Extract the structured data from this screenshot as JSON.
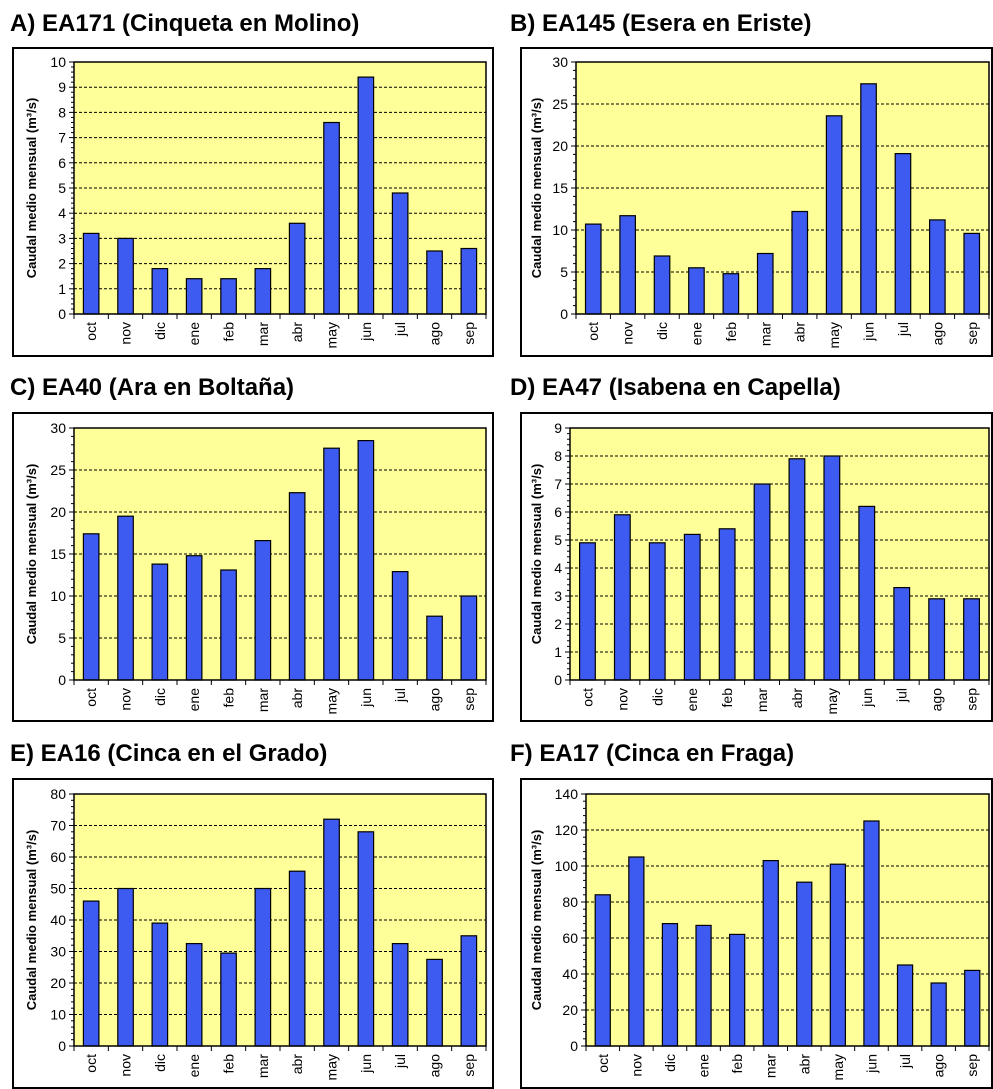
{
  "figure": {
    "panel_titles": [
      "A) EA171 (Cinqueta en Molino)",
      "B) EA145 (Esera en Eriste)",
      "C) EA40 (Ara en Boltaña)",
      "D) EA47 (Isabena en Capella)",
      "E) EA16 (Cinca en el Grado)",
      "F) EA17 (Cinca en Fraga)"
    ]
  },
  "colors": {
    "bar": "#3d5bf0",
    "plot_bg": "#ffff99",
    "gridline": "#000000",
    "border": "#000000"
  },
  "chart_data": [
    {
      "type": "bar",
      "title": "A) EA171 (Cinqueta en Molino)",
      "ylabel": "Caudal medio mensual (m³/s)",
      "categories": [
        "oct",
        "nov",
        "dic",
        "ene",
        "feb",
        "mar",
        "abr",
        "may",
        "jun",
        "jul",
        "ago",
        "sep"
      ],
      "values": [
        3.2,
        3.0,
        1.8,
        1.4,
        1.4,
        1.8,
        3.6,
        7.6,
        9.4,
        4.8,
        2.5,
        2.6
      ],
      "ylim": [
        0,
        10
      ],
      "yticks": [
        0,
        1,
        2,
        3,
        4,
        5,
        6,
        7,
        8,
        9,
        10
      ],
      "grid": true
    },
    {
      "type": "bar",
      "title": "B) EA145 (Esera en Eriste)",
      "ylabel": "Caudal medio mensual (m³/s)",
      "categories": [
        "oct",
        "nov",
        "dic",
        "ene",
        "feb",
        "mar",
        "abr",
        "may",
        "jun",
        "jul",
        "ago",
        "sep"
      ],
      "values": [
        10.7,
        11.7,
        6.9,
        5.5,
        4.8,
        7.2,
        12.2,
        23.6,
        27.4,
        19.1,
        11.2,
        9.6
      ],
      "ylim": [
        0,
        30
      ],
      "yticks": [
        0,
        5,
        10,
        15,
        20,
        25,
        30
      ],
      "grid": true
    },
    {
      "type": "bar",
      "title": "C) EA40 (Ara en Boltaña)",
      "ylabel": "Caudal medio mensual (m³/s)",
      "categories": [
        "oct",
        "nov",
        "dic",
        "ene",
        "feb",
        "mar",
        "abr",
        "may",
        "jun",
        "jul",
        "ago",
        "sep"
      ],
      "values": [
        17.4,
        19.5,
        13.8,
        14.8,
        13.1,
        16.6,
        22.3,
        27.6,
        28.5,
        12.9,
        7.6,
        10.0
      ],
      "ylim": [
        0,
        30
      ],
      "yticks": [
        0,
        5,
        10,
        15,
        20,
        25,
        30
      ],
      "grid": true
    },
    {
      "type": "bar",
      "title": "D) EA47 (Isabena en Capella)",
      "ylabel": "Caudal medio mensual (m³/s)",
      "categories": [
        "oct",
        "nov",
        "dic",
        "ene",
        "feb",
        "mar",
        "abr",
        "may",
        "jun",
        "jul",
        "ago",
        "sep"
      ],
      "values": [
        4.9,
        5.9,
        4.9,
        5.2,
        5.4,
        7.0,
        7.9,
        8.0,
        6.2,
        3.3,
        2.9,
        2.9
      ],
      "ylim": [
        0,
        9
      ],
      "yticks": [
        0,
        1,
        2,
        3,
        4,
        5,
        6,
        7,
        8,
        9
      ],
      "grid": true
    },
    {
      "type": "bar",
      "title": "E) EA16 (Cinca en el Grado)",
      "ylabel": "Caudal medio mensual (m³/s)",
      "categories": [
        "oct",
        "nov",
        "dic",
        "ene",
        "feb",
        "mar",
        "abr",
        "may",
        "jun",
        "jul",
        "ago",
        "sep"
      ],
      "values": [
        46,
        50,
        39,
        32.5,
        29.5,
        50,
        55.5,
        72,
        68,
        32.5,
        27.5,
        35
      ],
      "ylim": [
        0,
        80
      ],
      "yticks": [
        0,
        10,
        20,
        30,
        40,
        50,
        60,
        70,
        80
      ],
      "grid": true
    },
    {
      "type": "bar",
      "title": "F) EA17 (Cinca en Fraga)",
      "ylabel": "Caudal medio mensual (m³/s)",
      "categories": [
        "oct",
        "nov",
        "dic",
        "ene",
        "feb",
        "mar",
        "abr",
        "may",
        "jun",
        "jul",
        "ago",
        "sep"
      ],
      "values": [
        84,
        105,
        68,
        67,
        62,
        103,
        91,
        101,
        125,
        45,
        35,
        42
      ],
      "ylim": [
        0,
        140
      ],
      "yticks": [
        0,
        20,
        40,
        60,
        80,
        100,
        120,
        140
      ],
      "grid": true
    }
  ]
}
